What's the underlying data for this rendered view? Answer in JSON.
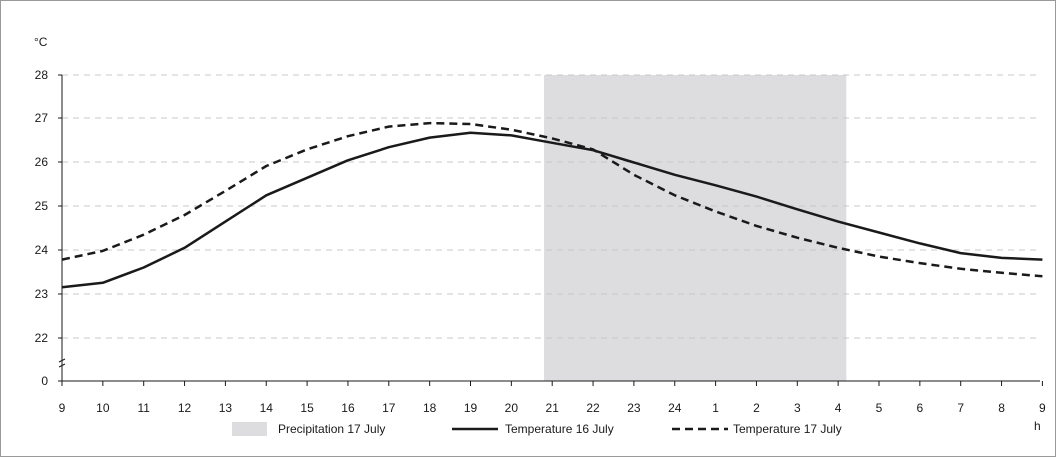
{
  "chart_data": {
    "type": "line",
    "ylabel": "°C",
    "xlabel": "h",
    "ylim": [
      21.5,
      28
    ],
    "y_ticks": [
      "0",
      "22",
      "23",
      "24",
      "25",
      "26",
      "27",
      "28"
    ],
    "axis_break": true,
    "x_ticks": [
      "9",
      "10",
      "11",
      "12",
      "13",
      "14",
      "15",
      "16",
      "17",
      "18",
      "19",
      "20",
      "21",
      "22",
      "23",
      "24",
      "1",
      "2",
      "3",
      "4",
      "5",
      "6",
      "7",
      "8",
      "9"
    ],
    "shaded_region": {
      "name": "Precipitation 17 July",
      "x_start": 20.8,
      "x_end": 28.2,
      "color": "#dddde0"
    },
    "series": [
      {
        "name": "Temperature 16 July",
        "style": "solid",
        "color": "#1a1a1a",
        "values": [
          23.15,
          23.25,
          23.6,
          24.05,
          24.65,
          25.25,
          25.65,
          26.05,
          26.35,
          26.57,
          26.68,
          26.62,
          26.45,
          26.28,
          26.0,
          25.72,
          25.48,
          25.22,
          24.93,
          24.65,
          24.4,
          24.15,
          23.93,
          23.82,
          23.78
        ]
      },
      {
        "name": "Temperature 17 July",
        "style": "dashed",
        "color": "#1a1a1a",
        "values": [
          23.78,
          23.98,
          24.35,
          24.8,
          25.35,
          25.92,
          26.3,
          26.6,
          26.82,
          26.9,
          26.88,
          26.75,
          26.55,
          26.3,
          25.72,
          25.25,
          24.88,
          24.55,
          24.28,
          24.05,
          23.85,
          23.7,
          23.57,
          23.48,
          23.4
        ]
      }
    ],
    "grid": true,
    "legend_placement": "bottom"
  }
}
